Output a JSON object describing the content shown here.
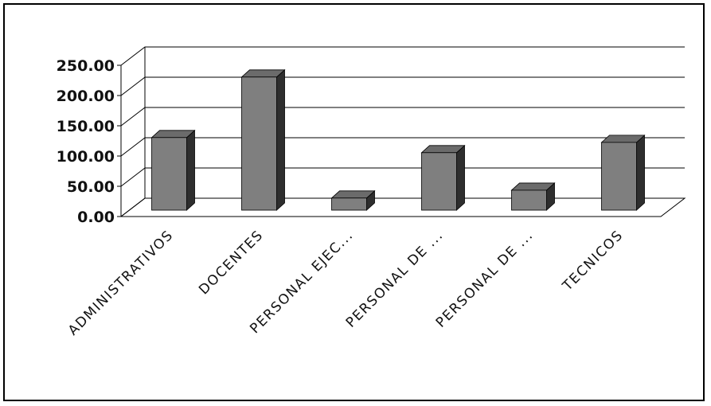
{
  "chart_data": {
    "type": "bar",
    "categories": [
      "ADMINISTRATIVOS",
      "DOCENTES",
      "PERSONAL EJEC...",
      "PERSONAL DE ...",
      "PERSONAL DE ...",
      "TECNICOS"
    ],
    "values": [
      120,
      220,
      20,
      95,
      33,
      112
    ],
    "yticks": [
      "0.00",
      "50.00",
      "100.00",
      "150.00",
      "200.00",
      "250.00"
    ],
    "ylim": [
      0,
      250
    ],
    "title": "",
    "xlabel": "",
    "ylabel": "",
    "grid": true,
    "style": "3d-column",
    "colors": {
      "bar_front": "#7f7f7f",
      "bar_top": "#6b6b6b",
      "bar_side": "#2e2e2e",
      "grid": "#000000"
    }
  }
}
